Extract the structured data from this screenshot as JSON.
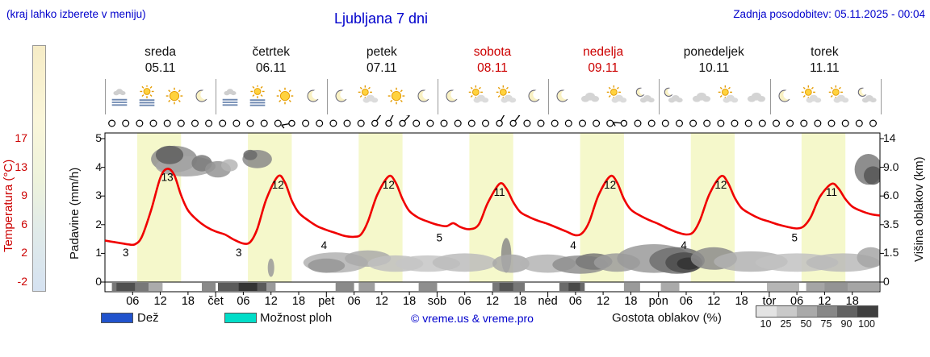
{
  "header": {
    "hint": "(kraj lahko izberete v meniju)",
    "title": "Ljubljana 7 dni",
    "updated": "Zadnja posodobitev: 05.11.2025 - 00:04"
  },
  "colors": {
    "weekday": "#111111",
    "weekend": "#cc0000",
    "accent_blue": "#0000cc",
    "temp_curve": "#f00000",
    "daylight_band": "#f5f8cb"
  },
  "days": [
    {
      "name": "sreda",
      "date": "05.11",
      "red": false,
      "icons": [
        "fog",
        "fog-sun",
        "sun",
        "moon"
      ]
    },
    {
      "name": "četrtek",
      "date": "06.11",
      "red": false,
      "icons": [
        "fog",
        "fog-sun",
        "sun",
        "moon"
      ]
    },
    {
      "name": "petek",
      "date": "07.11",
      "red": false,
      "icons": [
        "moon",
        "sun-cloud",
        "sun",
        "moon"
      ]
    },
    {
      "name": "sobota",
      "date": "08.11",
      "red": true,
      "icons": [
        "moon",
        "sun-cloud",
        "sun-cloud",
        "moon"
      ]
    },
    {
      "name": "nedelja",
      "date": "09.11",
      "red": true,
      "icons": [
        "moon",
        "cloud",
        "sun-cloud",
        "moon-cloud"
      ]
    },
    {
      "name": "ponedeljek",
      "date": "10.11",
      "red": false,
      "icons": [
        "moon-cloud",
        "cloud",
        "sun-cloud",
        "cloud"
      ]
    },
    {
      "name": "torek",
      "date": "11.11",
      "red": false,
      "icons": [
        "moon",
        "sun-cloud",
        "sun-cloud",
        "moon-cloud"
      ]
    }
  ],
  "axes": {
    "temperature": {
      "title": "Temperatura (°C)",
      "ticks": [
        "17",
        "13",
        "9",
        "6",
        "2",
        "-2"
      ]
    },
    "precipitation": {
      "title": "Padavine (mm/h)",
      "ticks": [
        "5",
        "4",
        "3",
        "2",
        "1",
        "0"
      ]
    },
    "cloud_height": {
      "title": "Višina oblakov (km)",
      "ticks": [
        "14",
        "9.0",
        "6.0",
        "3.5",
        "1.5",
        "0"
      ]
    },
    "time": {
      "hours": [
        "06",
        "12",
        "18"
      ],
      "day_abbrs": [
        "čet",
        "pet",
        "sob",
        "ned",
        "pon",
        "tor"
      ]
    }
  },
  "wind": {
    "count": 56,
    "barbs": [
      {
        "i": 13,
        "a": 190
      },
      {
        "i": 19,
        "a": 55
      },
      {
        "i": 20,
        "a": 62
      },
      {
        "i": 21,
        "a": 48
      },
      {
        "i": 28,
        "a": 60
      },
      {
        "i": 29,
        "a": 52
      },
      {
        "i": 37,
        "a": 175
      }
    ]
  },
  "chart_data": {
    "type": "line",
    "title": "Ljubljana 7 dni",
    "x_unit": "hours over 7 days (0-168)",
    "temp_axis_range": [
      -2,
      17.5
    ],
    "cloud_axis_range_km": [
      0,
      14
    ],
    "daylight": {
      "start": 7,
      "end": 16.5,
      "color": "#f5f8cb"
    },
    "temperature": {
      "name": "Temperatura",
      "color": "#f00000",
      "points": [
        [
          0,
          3.5
        ],
        [
          3,
          3.2
        ],
        [
          5,
          3.0
        ],
        [
          6.5,
          3.0
        ],
        [
          8,
          4.0
        ],
        [
          10,
          7.5
        ],
        [
          12,
          11.8
        ],
        [
          13.5,
          13
        ],
        [
          15,
          12.2
        ],
        [
          16.5,
          9.5
        ],
        [
          18,
          7.5
        ],
        [
          20,
          6.2
        ],
        [
          22,
          5.3
        ],
        [
          24,
          4.7
        ],
        [
          26,
          4.3
        ],
        [
          28,
          3.6
        ],
        [
          30,
          3.1
        ],
        [
          31.5,
          3.3
        ],
        [
          33,
          5.0
        ],
        [
          35,
          9.0
        ],
        [
          37.5,
          12
        ],
        [
          39,
          11.2
        ],
        [
          40.5,
          8.8
        ],
        [
          42,
          7.2
        ],
        [
          44,
          6.2
        ],
        [
          46,
          5.4
        ],
        [
          48,
          4.9
        ],
        [
          50,
          4.5
        ],
        [
          52,
          4.1
        ],
        [
          54,
          4.0
        ],
        [
          55.5,
          4.3
        ],
        [
          57,
          6.0
        ],
        [
          59,
          9.5
        ],
        [
          61.5,
          12
        ],
        [
          63,
          11.2
        ],
        [
          64.5,
          9.0
        ],
        [
          66,
          7.4
        ],
        [
          68,
          6.5
        ],
        [
          70,
          6.0
        ],
        [
          72,
          5.6
        ],
        [
          74,
          5.4
        ],
        [
          75.5,
          5.8
        ],
        [
          77,
          5.3
        ],
        [
          79,
          5.0
        ],
        [
          81,
          5.6
        ],
        [
          83,
          8.5
        ],
        [
          85.5,
          11
        ],
        [
          87,
          10.4
        ],
        [
          88.5,
          8.6
        ],
        [
          90,
          7.3
        ],
        [
          92,
          6.6
        ],
        [
          94,
          6.1
        ],
        [
          96,
          5.7
        ],
        [
          98,
          5.2
        ],
        [
          100,
          4.7
        ],
        [
          102,
          4.2
        ],
        [
          103.5,
          4.5
        ],
        [
          105,
          6.0
        ],
        [
          107,
          9.5
        ],
        [
          109.5,
          12
        ],
        [
          111,
          11.2
        ],
        [
          112.5,
          9.0
        ],
        [
          114,
          7.6
        ],
        [
          116,
          6.8
        ],
        [
          118,
          6.2
        ],
        [
          120,
          5.7
        ],
        [
          122,
          5.1
        ],
        [
          124,
          4.6
        ],
        [
          126,
          4.3
        ],
        [
          127.5,
          4.6
        ],
        [
          129,
          6.2
        ],
        [
          131,
          9.6
        ],
        [
          133.5,
          12
        ],
        [
          135,
          11.2
        ],
        [
          136.5,
          9.2
        ],
        [
          138,
          7.8
        ],
        [
          140,
          7.0
        ],
        [
          142,
          6.4
        ],
        [
          144,
          6.0
        ],
        [
          146,
          5.6
        ],
        [
          148,
          5.3
        ],
        [
          150,
          5.1
        ],
        [
          151.5,
          5.4
        ],
        [
          153,
          6.6
        ],
        [
          155,
          9.3
        ],
        [
          157.5,
          11
        ],
        [
          159,
          10.4
        ],
        [
          160.5,
          9.0
        ],
        [
          162,
          8.0
        ],
        [
          164,
          7.4
        ],
        [
          166,
          7.0
        ],
        [
          168,
          6.8
        ]
      ],
      "max_labels": [
        {
          "h": 13.5,
          "v": 13
        },
        {
          "h": 37.5,
          "v": 12
        },
        {
          "h": 61.5,
          "v": 12
        },
        {
          "h": 85.5,
          "v": 11
        },
        {
          "h": 109.5,
          "v": 12
        },
        {
          "h": 133.5,
          "v": 12
        },
        {
          "h": 157.5,
          "v": 11
        }
      ],
      "min_labels": [
        {
          "h": 4.5,
          "v": 3
        },
        {
          "h": 29,
          "v": 3
        },
        {
          "h": 47.5,
          "v": 4
        },
        {
          "h": 72.5,
          "v": 5
        },
        {
          "h": 101.5,
          "v": 4
        },
        {
          "h": 125.5,
          "v": 4
        },
        {
          "h": 149.5,
          "v": 5
        }
      ]
    },
    "cloud_blobs": [
      [
        15,
        12,
        5,
        1.3,
        "#8f8f8f"
      ],
      [
        17.5,
        11.3,
        6.5,
        1.0,
        "#a5a5a5"
      ],
      [
        14,
        12.4,
        3,
        0.9,
        "#5f5f5f"
      ],
      [
        21,
        11.6,
        2.2,
        0.8,
        "#7a7a7a"
      ],
      [
        24.5,
        11,
        2.8,
        0.8,
        "#949494"
      ],
      [
        27,
        11.4,
        1.8,
        0.6,
        "#b5b5b5"
      ],
      [
        33,
        12,
        3.2,
        0.9,
        "#8a8a8a"
      ],
      [
        31.5,
        12.4,
        1.5,
        0.5,
        "#6a6a6a"
      ],
      [
        36,
        1.4,
        0.7,
        0.9,
        "#9a9a9a"
      ],
      [
        50,
        1.9,
        7,
        1.0,
        "#b2b2b2"
      ],
      [
        48,
        1.6,
        4,
        0.7,
        "#979797"
      ],
      [
        57,
        2.3,
        5,
        0.8,
        "#aaaaaa"
      ],
      [
        63,
        1.8,
        6,
        0.8,
        "#c0c0c0"
      ],
      [
        70,
        1.8,
        7,
        0.8,
        "#c6c6c6"
      ],
      [
        78,
        1.9,
        7,
        0.9,
        "#bcbcbc"
      ],
      [
        87,
        2.6,
        1.1,
        1.7,
        "#8a8a8a"
      ],
      [
        88,
        1.8,
        4,
        0.9,
        "#a8a8a8"
      ],
      [
        96,
        1.8,
        6,
        0.9,
        "#b4b4b4"
      ],
      [
        103,
        1.7,
        6,
        0.9,
        "#8e8e8e"
      ],
      [
        106,
        2.0,
        4,
        0.8,
        "#787878"
      ],
      [
        111,
        1.9,
        5,
        0.9,
        "#9c9c9c"
      ],
      [
        119,
        2.3,
        8,
        1.4,
        "#9a9a9a"
      ],
      [
        124,
        2.1,
        6,
        1.3,
        "#707070"
      ],
      [
        125.5,
        1.9,
        4,
        1.0,
        "#4c4c4c"
      ],
      [
        126.5,
        1.8,
        2.5,
        0.6,
        "#333333"
      ],
      [
        132,
        2.3,
        5,
        1.1,
        "#8c8c8c"
      ],
      [
        140,
        2.0,
        8,
        1.0,
        "#b2b2b2"
      ],
      [
        150,
        1.9,
        9,
        0.9,
        "#c2c2c2"
      ],
      [
        160,
        1.9,
        8,
        0.9,
        "#bababa"
      ],
      [
        166,
        2.4,
        3,
        1.0,
        "#a6a6a6"
      ],
      [
        165.5,
        11,
        3,
        1.5,
        "#7a7a7a"
      ],
      [
        166.5,
        10.4,
        2,
        0.9,
        "#565656"
      ]
    ],
    "ground_strip": [
      [
        1.5,
        9.5,
        "#787878"
      ],
      [
        2.5,
        6.5,
        "#4f4f4f"
      ],
      [
        9.5,
        12.5,
        "#ababab"
      ],
      [
        21,
        24,
        "#8a8a8a"
      ],
      [
        24.5,
        35,
        "#5a5a5a"
      ],
      [
        29,
        33,
        "#343434"
      ],
      [
        35,
        37,
        "#9a9a9a"
      ],
      [
        50,
        54,
        "#8a8a8a"
      ],
      [
        55,
        58.5,
        "#9e9e9e"
      ],
      [
        68,
        72,
        "#8e8e8e"
      ],
      [
        84,
        91,
        "#777777"
      ],
      [
        85.5,
        88.5,
        "#555555"
      ],
      [
        98.5,
        104,
        "#6a6a6a"
      ],
      [
        100.5,
        103,
        "#484848"
      ],
      [
        112.5,
        116,
        "#9a9a9a"
      ],
      [
        120.5,
        124.5,
        "#aaaaaa"
      ],
      [
        143.5,
        150.5,
        "#b5b5b5"
      ],
      [
        152,
        168,
        "#a5a5a5"
      ],
      [
        156,
        161,
        "#949494"
      ]
    ]
  },
  "legend": {
    "rain": {
      "label": "Dež",
      "color": "#2153cc"
    },
    "showers": {
      "label": "Možnost ploh",
      "color": "#00ddc8"
    },
    "copyright": "© vreme.us & vreme.pro",
    "cloud_density": {
      "label": "Gostota oblakov (%)",
      "levels": [
        "10",
        "25",
        "50",
        "75",
        "90",
        "100"
      ],
      "colors": [
        "#e3e3e3",
        "#c9c9c9",
        "#a9a9a9",
        "#878787",
        "#626262",
        "#3f3f3f"
      ]
    }
  }
}
